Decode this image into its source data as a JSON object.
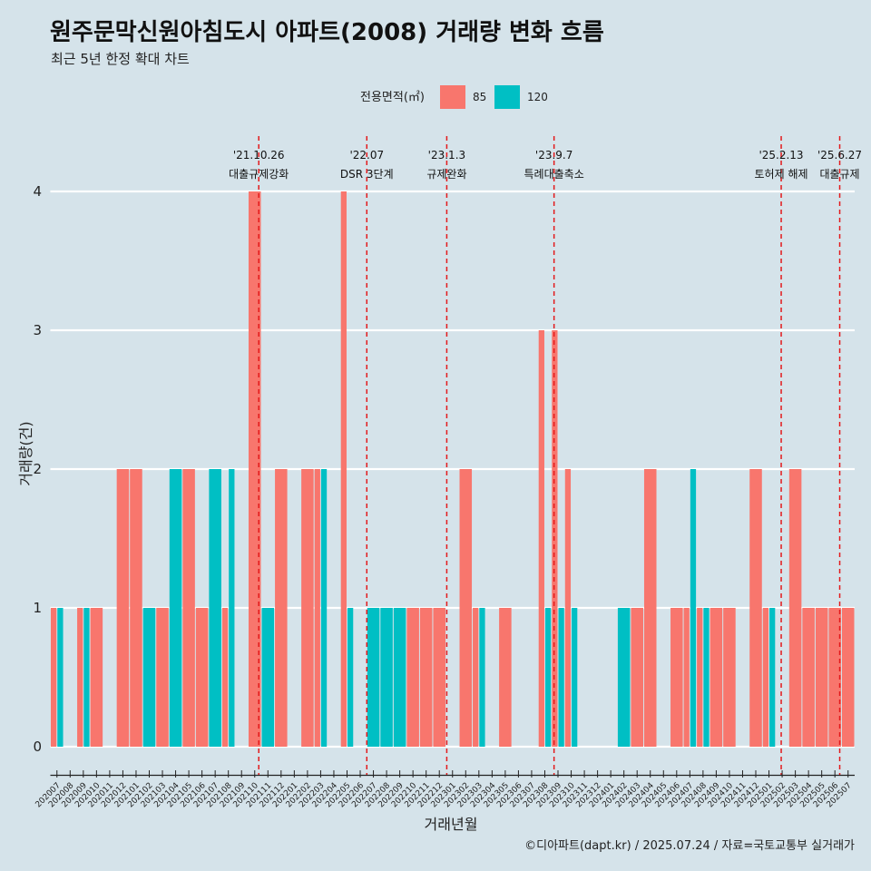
{
  "title": "원주문막신원아침도시 아파트(2008) 거래량 변화 흐름",
  "subtitle": "최근 5년 한정 확대 차트",
  "caption": "©디아파트(dapt.kr) / 2025.07.24 / 자료=국토교통부 실거래가",
  "colors": {
    "background": "#d5e3ea",
    "grid": "#ffffff",
    "event_line": "#e31a1c"
  },
  "chart_data": {
    "type": "bar",
    "xlabel": "거래년월",
    "ylabel": "거래량(건)",
    "ylim": [
      0,
      4
    ],
    "yticks": [
      0,
      1,
      2,
      3,
      4
    ],
    "grid": true,
    "legend_position": "top",
    "legend_title": "전용면적(㎡)",
    "months": [
      "202007",
      "202008",
      "202009",
      "202010",
      "202011",
      "202012",
      "202101",
      "202102",
      "202103",
      "202104",
      "202105",
      "202106",
      "202107",
      "202108",
      "202109",
      "202110",
      "202111",
      "202112",
      "202201",
      "202202",
      "202203",
      "202204",
      "202205",
      "202206",
      "202207",
      "202208",
      "202209",
      "202210",
      "202211",
      "202212",
      "202301",
      "202302",
      "202303",
      "202304",
      "202305",
      "202306",
      "202307",
      "202308",
      "202309",
      "202310",
      "202311",
      "202312",
      "202401",
      "202402",
      "202403",
      "202404",
      "202405",
      "202406",
      "202407",
      "202408",
      "202409",
      "202410",
      "202411",
      "202412",
      "202501",
      "202502",
      "202503",
      "202504",
      "202505",
      "202506",
      "202507"
    ],
    "series": [
      {
        "name": "85",
        "color": "#f8766d"
      },
      {
        "name": "120",
        "color": "#00bfc4"
      }
    ],
    "transactions": [
      {
        "month": "202007",
        "area": "85",
        "count": 1
      },
      {
        "month": "202007",
        "area": "120",
        "count": 1
      },
      {
        "month": "202009",
        "area": "85",
        "count": 1
      },
      {
        "month": "202009",
        "area": "120",
        "count": 1
      },
      {
        "month": "202010",
        "area": "85",
        "count": 1
      },
      {
        "month": "202012",
        "area": "85",
        "count": 2
      },
      {
        "month": "202101",
        "area": "85",
        "count": 2
      },
      {
        "month": "202102",
        "area": "120",
        "count": 1
      },
      {
        "month": "202103",
        "area": "85",
        "count": 1
      },
      {
        "month": "202104",
        "area": "120",
        "count": 2
      },
      {
        "month": "202105",
        "area": "85",
        "count": 2
      },
      {
        "month": "202106",
        "area": "85",
        "count": 1
      },
      {
        "month": "202107",
        "area": "120",
        "count": 2
      },
      {
        "month": "202108",
        "area": "85",
        "count": 1
      },
      {
        "month": "202108",
        "area": "120",
        "count": 2
      },
      {
        "month": "202110",
        "area": "85",
        "count": 4
      },
      {
        "month": "202111",
        "area": "120",
        "count": 1
      },
      {
        "month": "202112",
        "area": "85",
        "count": 2
      },
      {
        "month": "202202",
        "area": "85",
        "count": 2
      },
      {
        "month": "202203",
        "area": "85",
        "count": 2
      },
      {
        "month": "202203",
        "area": "120",
        "count": 2
      },
      {
        "month": "202205",
        "area": "85",
        "count": 4
      },
      {
        "month": "202205",
        "area": "120",
        "count": 1
      },
      {
        "month": "202207",
        "area": "120",
        "count": 1
      },
      {
        "month": "202208",
        "area": "120",
        "count": 1
      },
      {
        "month": "202209",
        "area": "120",
        "count": 1
      },
      {
        "month": "202210",
        "area": "85",
        "count": 1
      },
      {
        "month": "202211",
        "area": "85",
        "count": 1
      },
      {
        "month": "202212",
        "area": "85",
        "count": 1
      },
      {
        "month": "202302",
        "area": "85",
        "count": 2
      },
      {
        "month": "202303",
        "area": "85",
        "count": 1
      },
      {
        "month": "202303",
        "area": "120",
        "count": 1
      },
      {
        "month": "202305",
        "area": "85",
        "count": 1
      },
      {
        "month": "202308",
        "area": "85",
        "count": 3
      },
      {
        "month": "202308",
        "area": "120",
        "count": 1
      },
      {
        "month": "202309",
        "area": "85",
        "count": 3
      },
      {
        "month": "202309",
        "area": "120",
        "count": 1
      },
      {
        "month": "202310",
        "area": "85",
        "count": 2
      },
      {
        "month": "202310",
        "area": "120",
        "count": 1
      },
      {
        "month": "202402",
        "area": "120",
        "count": 1
      },
      {
        "month": "202403",
        "area": "85",
        "count": 1
      },
      {
        "month": "202404",
        "area": "85",
        "count": 2
      },
      {
        "month": "202406",
        "area": "85",
        "count": 1
      },
      {
        "month": "202407",
        "area": "85",
        "count": 1
      },
      {
        "month": "202407",
        "area": "120",
        "count": 2
      },
      {
        "month": "202408",
        "area": "85",
        "count": 1
      },
      {
        "month": "202408",
        "area": "120",
        "count": 1
      },
      {
        "month": "202409",
        "area": "85",
        "count": 1
      },
      {
        "month": "202410",
        "area": "85",
        "count": 1
      },
      {
        "month": "202412",
        "area": "85",
        "count": 2
      },
      {
        "month": "202501",
        "area": "85",
        "count": 1
      },
      {
        "month": "202501",
        "area": "120",
        "count": 1
      },
      {
        "month": "202503",
        "area": "85",
        "count": 2
      },
      {
        "month": "202504",
        "area": "85",
        "count": 1
      },
      {
        "month": "202505",
        "area": "85",
        "count": 1
      },
      {
        "month": "202506",
        "area": "85",
        "count": 1
      },
      {
        "month": "202507",
        "area": "85",
        "count": 1
      }
    ],
    "events": [
      {
        "date": "2021-10-26",
        "label_date": "'21.10.26",
        "label": "대출규제강화"
      },
      {
        "date": "2022-07-01",
        "label_date": "'22.07",
        "label": "DSR 3단계"
      },
      {
        "date": "2023-01-03",
        "label_date": "'23.1.3",
        "label": "규제완화"
      },
      {
        "date": "2023-09-07",
        "label_date": "'23.9.7",
        "label": "특례대출축소"
      },
      {
        "date": "2025-02-13",
        "label_date": "'25.2.13",
        "label": "토허제 해제"
      },
      {
        "date": "2025-06-27",
        "label_date": "'25.6.27",
        "label": "대출규제"
      }
    ]
  }
}
